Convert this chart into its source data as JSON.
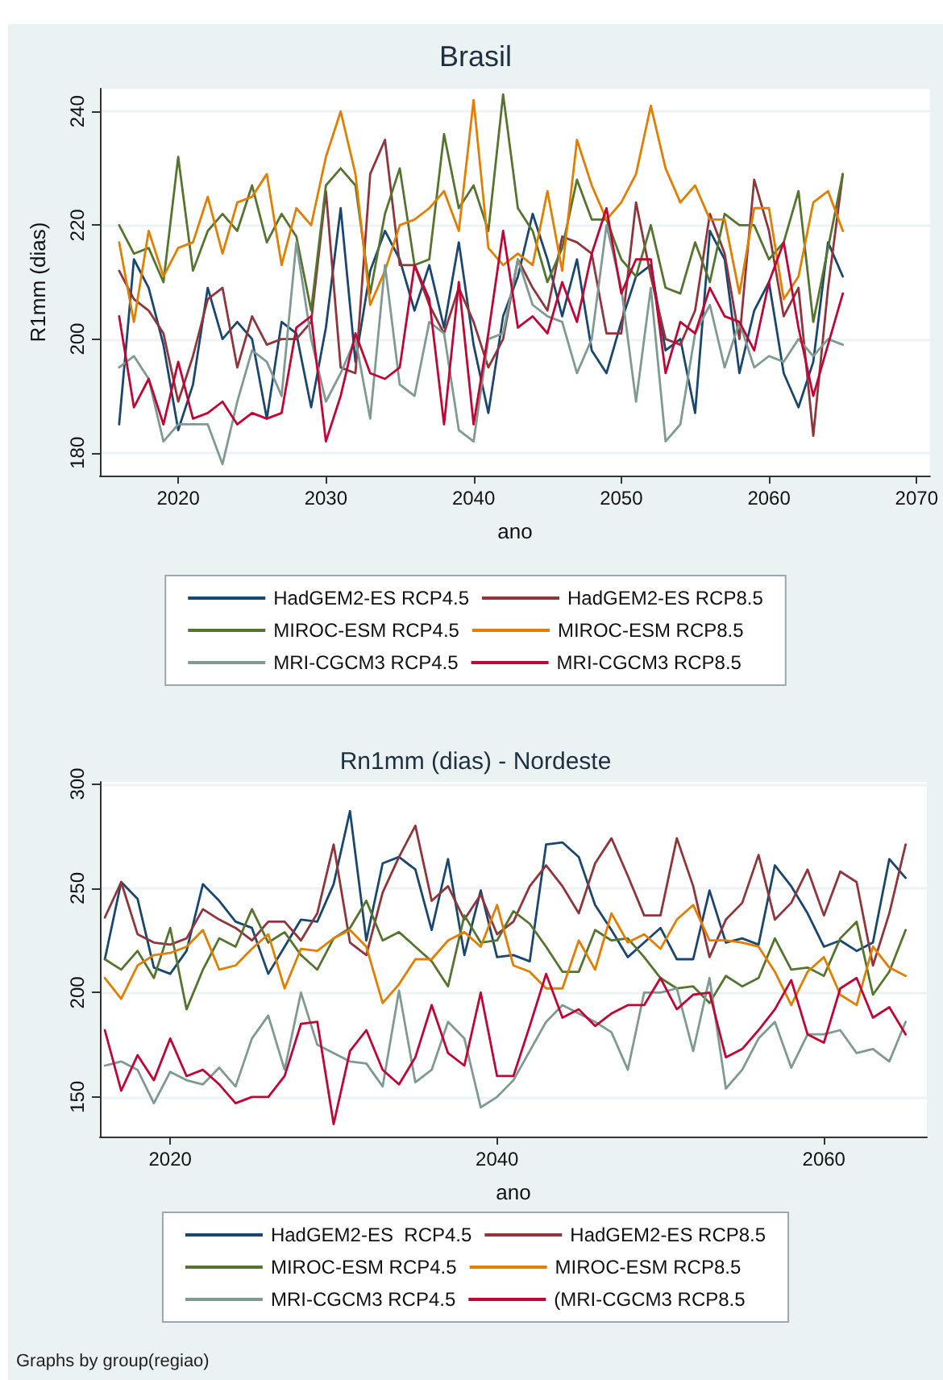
{
  "chart_data": [
    {
      "type": "line",
      "title": "Brasil",
      "xlabel": "ano",
      "ylabel": "R1mm (dias)",
      "grid": "y",
      "legend": "bottom",
      "x": [
        2016,
        2017,
        2018,
        2019,
        2020,
        2021,
        2022,
        2023,
        2024,
        2025,
        2026,
        2027,
        2028,
        2029,
        2030,
        2031,
        2032,
        2033,
        2034,
        2035,
        2036,
        2037,
        2038,
        2039,
        2040,
        2041,
        2042,
        2043,
        2044,
        2045,
        2046,
        2047,
        2048,
        2049,
        2050,
        2051,
        2052,
        2053,
        2054,
        2055,
        2056,
        2057,
        2058,
        2059,
        2060,
        2061,
        2062,
        2063,
        2064,
        2065
      ],
      "xlim": [
        2014.7,
        2070.9
      ],
      "xticks": [
        2020,
        2030,
        2040,
        2050,
        2060,
        2070
      ],
      "ylim": [
        176,
        244
      ],
      "yticks": [
        180,
        200,
        220,
        240
      ],
      "series": [
        {
          "name": "HadGEM2-ES RCP4.5",
          "color": "#1a476f",
          "values": [
            185,
            214,
            209,
            199,
            184,
            192,
            209,
            200,
            203,
            200,
            186,
            203,
            201,
            188,
            202,
            223,
            196,
            212,
            219,
            214,
            205,
            213,
            202,
            217,
            199,
            187,
            204,
            211,
            222,
            214,
            204,
            214,
            198,
            194,
            203,
            211,
            213,
            198,
            200,
            187,
            219,
            214,
            194,
            205,
            210,
            194,
            188,
            196,
            217,
            211
          ]
        },
        {
          "name": "HadGEM2-ES RCP8.5",
          "color": "#90353b",
          "values": [
            212,
            207,
            205,
            201,
            189,
            197,
            207,
            209,
            195,
            204,
            199,
            200,
            200,
            203,
            226,
            195,
            194,
            229,
            235,
            213,
            213,
            206,
            201,
            209,
            203,
            195,
            200,
            214,
            209,
            205,
            218,
            217,
            215,
            201,
            201,
            224,
            211,
            200,
            199,
            205,
            222,
            215,
            200,
            228,
            219,
            204,
            209,
            183,
            209,
            229
          ]
        },
        {
          "name": "MIROC-ESM RCP4.5",
          "color": "#55752f",
          "values": [
            220,
            215,
            216,
            210,
            232,
            212,
            219,
            222,
            219,
            227,
            217,
            222,
            218,
            205,
            227,
            230,
            227,
            208,
            222,
            230,
            213,
            214,
            236,
            223,
            227,
            219,
            243,
            223,
            219,
            210,
            216,
            228,
            221,
            221,
            214,
            211,
            220,
            209,
            208,
            217,
            210,
            222,
            220,
            220,
            214,
            217,
            226,
            203,
            216,
            229
          ]
        },
        {
          "name": "MIROC-ESM RCP8.5",
          "color": "#e37e00",
          "values": [
            217,
            203,
            219,
            211,
            216,
            217,
            225,
            215,
            224,
            225,
            229,
            213,
            223,
            220,
            232,
            240,
            229,
            206,
            212,
            220,
            221,
            223,
            226,
            219,
            242,
            216,
            213,
            215,
            213,
            226,
            212,
            235,
            227,
            221,
            224,
            229,
            241,
            230,
            224,
            227,
            221,
            221,
            208,
            223,
            223,
            207,
            211,
            224,
            226,
            219
          ]
        },
        {
          "name": "MRI-CGCM3 RCP4.5",
          "color": "#7f9a92",
          "values": [
            195,
            197,
            193,
            182,
            185,
            185,
            185,
            178,
            189,
            198,
            196,
            190,
            217,
            200,
            189,
            194,
            200,
            186,
            213,
            192,
            190,
            203,
            201,
            184,
            182,
            200,
            201,
            214,
            206,
            204,
            203,
            194,
            200,
            220,
            209,
            189,
            209,
            182,
            185,
            201,
            206,
            195,
            203,
            195,
            197,
            196,
            200,
            197,
            200,
            199
          ]
        },
        {
          "name": "MRI-CGCM3 RCP8.5",
          "color": "#c10534",
          "values": [
            204,
            188,
            193,
            185,
            196,
            186,
            187,
            189,
            185,
            187,
            186,
            187,
            202,
            204,
            182,
            190,
            201,
            194,
            193,
            195,
            213,
            207,
            185,
            210,
            185,
            201,
            219,
            202,
            204,
            201,
            210,
            203,
            215,
            223,
            208,
            214,
            214,
            194,
            203,
            201,
            209,
            204,
            203,
            198,
            210,
            217,
            202,
            190,
            199,
            208
          ]
        }
      ]
    },
    {
      "type": "line",
      "title": "Rn1mm (dias) - Nordeste",
      "xlabel": "ano",
      "grid": "y",
      "legend": "bottom",
      "annotations": [
        "Graphs by group(regiao)"
      ],
      "x": [
        2016,
        2017,
        2018,
        2019,
        2020,
        2021,
        2022,
        2023,
        2024,
        2025,
        2026,
        2027,
        2028,
        2029,
        2030,
        2031,
        2032,
        2033,
        2034,
        2035,
        2036,
        2037,
        2038,
        2039,
        2040,
        2041,
        2042,
        2043,
        2044,
        2045,
        2046,
        2047,
        2048,
        2049,
        2050,
        2051,
        2052,
        2053,
        2054,
        2055,
        2056,
        2057,
        2058,
        2059,
        2060,
        2061,
        2062,
        2063,
        2064,
        2065
      ],
      "xlim": [
        2015.7,
        2066.3
      ],
      "xticks": [
        2020,
        2040,
        2060
      ],
      "ylim": [
        131,
        301
      ],
      "yticks": [
        150,
        200,
        250,
        300
      ],
      "series": [
        {
          "name": "HadGEM2-ES  RCP4.5",
          "color": "#1a476f",
          "values": [
            216,
            253,
            245,
            212,
            209,
            220,
            252,
            244,
            234,
            231,
            209,
            222,
            235,
            234,
            252,
            287,
            225,
            262,
            265,
            259,
            230,
            264,
            218,
            249,
            217,
            218,
            215,
            271,
            272,
            265,
            242,
            230,
            217,
            224,
            231,
            216,
            216,
            249,
            224,
            226,
            223,
            261,
            251,
            238,
            222,
            225,
            220,
            224,
            264,
            255
          ]
        },
        {
          "name": "HadGEM2-ES RCP8.5",
          "color": "#90353b",
          "values": [
            236,
            253,
            228,
            224,
            223,
            226,
            240,
            235,
            231,
            225,
            234,
            234,
            225,
            238,
            271,
            224,
            218,
            248,
            265,
            280,
            244,
            251,
            235,
            247,
            228,
            234,
            251,
            261,
            251,
            238,
            262,
            274,
            256,
            237,
            237,
            274,
            251,
            217,
            235,
            243,
            266,
            235,
            243,
            259,
            237,
            258,
            253,
            213,
            238,
            271
          ]
        },
        {
          "name": "MIROC-ESM RCP4.5",
          "color": "#55752f",
          "values": [
            216,
            211,
            220,
            207,
            231,
            192,
            211,
            226,
            222,
            240,
            224,
            229,
            218,
            211,
            226,
            231,
            244,
            225,
            229,
            222,
            215,
            203,
            237,
            224,
            225,
            239,
            233,
            222,
            210,
            210,
            230,
            225,
            226,
            217,
            207,
            202,
            203,
            195,
            208,
            203,
            207,
            226,
            211,
            212,
            208,
            226,
            234,
            199,
            210,
            230
          ]
        },
        {
          "name": "MIROC-ESM RCP8.5",
          "color": "#e37e00",
          "values": [
            207,
            197,
            213,
            218,
            219,
            222,
            230,
            211,
            213,
            221,
            228,
            202,
            221,
            220,
            226,
            230,
            222,
            195,
            204,
            216,
            216,
            225,
            229,
            222,
            242,
            213,
            210,
            202,
            202,
            225,
            211,
            238,
            224,
            228,
            221,
            235,
            242,
            225,
            225,
            224,
            222,
            210,
            194,
            210,
            217,
            199,
            194,
            222,
            212,
            208
          ]
        },
        {
          "name": "MRI-CGCM3 RCP4.5",
          "color": "#7f9a92",
          "values": [
            165,
            167,
            163,
            147,
            162,
            158,
            156,
            164,
            155,
            178,
            189,
            163,
            200,
            175,
            171,
            167,
            166,
            155,
            201,
            157,
            163,
            186,
            178,
            145,
            150,
            158,
            172,
            186,
            194,
            190,
            186,
            181,
            163,
            200,
            200,
            202,
            172,
            207,
            154,
            163,
            178,
            186,
            164,
            180,
            180,
            182,
            171,
            173,
            167,
            186
          ]
        },
        {
          "name": "(MRI-CGCM3 RCP8.5",
          "color": "#c10534",
          "values": [
            182,
            153,
            170,
            158,
            178,
            160,
            163,
            156,
            147,
            150,
            150,
            160,
            185,
            186,
            137,
            172,
            182,
            163,
            156,
            169,
            194,
            171,
            165,
            200,
            160,
            160,
            184,
            209,
            188,
            192,
            184,
            190,
            194,
            194,
            207,
            192,
            199,
            200,
            169,
            173,
            182,
            192,
            206,
            180,
            176,
            202,
            207,
            188,
            193,
            180
          ]
        }
      ]
    }
  ]
}
